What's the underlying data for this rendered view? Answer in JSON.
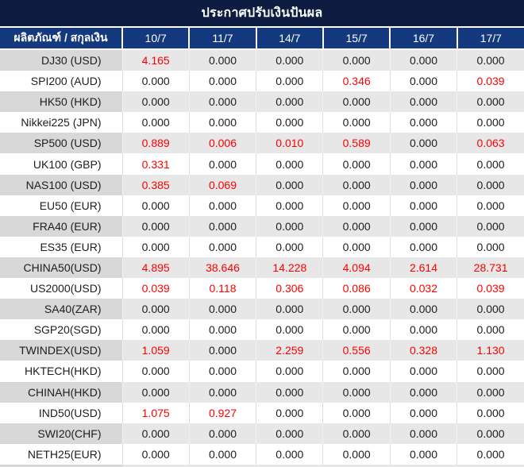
{
  "title": "ประกาศปรับเงินปันผล",
  "table": {
    "product_header": "ผลิตภัณฑ์ / สกุลเงิน",
    "date_columns": [
      "10/7",
      "11/7",
      "14/7",
      "15/7",
      "16/7",
      "17/7"
    ],
    "rows": [
      {
        "label": "DJ30 (USD)",
        "values": [
          "4.165",
          "0.000",
          "0.000",
          "0.000",
          "0.000",
          "0.000"
        ],
        "red": [
          true,
          false,
          false,
          false,
          false,
          false
        ]
      },
      {
        "label": "SPI200 (AUD)",
        "values": [
          "0.000",
          "0.000",
          "0.000",
          "0.346",
          "0.000",
          "0.039"
        ],
        "red": [
          false,
          false,
          false,
          true,
          false,
          true
        ]
      },
      {
        "label": "HK50 (HKD)",
        "values": [
          "0.000",
          "0.000",
          "0.000",
          "0.000",
          "0.000",
          "0.000"
        ],
        "red": [
          false,
          false,
          false,
          false,
          false,
          false
        ]
      },
      {
        "label": "Nikkei225 (JPN)",
        "values": [
          "0.000",
          "0.000",
          "0.000",
          "0.000",
          "0.000",
          "0.000"
        ],
        "red": [
          false,
          false,
          false,
          false,
          false,
          false
        ]
      },
      {
        "label": "SP500 (USD)",
        "values": [
          "0.889",
          "0.006",
          "0.010",
          "0.589",
          "0.000",
          "0.063"
        ],
        "red": [
          true,
          true,
          true,
          true,
          false,
          true
        ]
      },
      {
        "label": "UK100 (GBP)",
        "values": [
          "0.331",
          "0.000",
          "0.000",
          "0.000",
          "0.000",
          "0.000"
        ],
        "red": [
          true,
          false,
          false,
          false,
          false,
          false
        ]
      },
      {
        "label": "NAS100 (USD)",
        "values": [
          "0.385",
          "0.069",
          "0.000",
          "0.000",
          "0.000",
          "0.000"
        ],
        "red": [
          true,
          true,
          false,
          false,
          false,
          false
        ]
      },
      {
        "label": "EU50 (EUR)",
        "values": [
          "0.000",
          "0.000",
          "0.000",
          "0.000",
          "0.000",
          "0.000"
        ],
        "red": [
          false,
          false,
          false,
          false,
          false,
          false
        ]
      },
      {
        "label": "FRA40 (EUR)",
        "values": [
          "0.000",
          "0.000",
          "0.000",
          "0.000",
          "0.000",
          "0.000"
        ],
        "red": [
          false,
          false,
          false,
          false,
          false,
          false
        ]
      },
      {
        "label": "ES35 (EUR)",
        "values": [
          "0.000",
          "0.000",
          "0.000",
          "0.000",
          "0.000",
          "0.000"
        ],
        "red": [
          false,
          false,
          false,
          false,
          false,
          false
        ]
      },
      {
        "label": "CHINA50(USD)",
        "values": [
          "4.895",
          "38.646",
          "14.228",
          "4.094",
          "2.614",
          "28.731"
        ],
        "red": [
          true,
          true,
          true,
          true,
          true,
          true
        ]
      },
      {
        "label": "US2000(USD)",
        "values": [
          "0.039",
          "0.118",
          "0.306",
          "0.086",
          "0.032",
          "0.039"
        ],
        "red": [
          true,
          true,
          true,
          true,
          true,
          true
        ]
      },
      {
        "label": "SA40(ZAR)",
        "values": [
          "0.000",
          "0.000",
          "0.000",
          "0.000",
          "0.000",
          "0.000"
        ],
        "red": [
          false,
          false,
          false,
          false,
          false,
          false
        ]
      },
      {
        "label": "SGP20(SGD)",
        "values": [
          "0.000",
          "0.000",
          "0.000",
          "0.000",
          "0.000",
          "0.000"
        ],
        "red": [
          false,
          false,
          false,
          false,
          false,
          false
        ]
      },
      {
        "label": "TWINDEX(USD)",
        "values": [
          "1.059",
          "0.000",
          "2.259",
          "0.556",
          "0.328",
          "1.130"
        ],
        "red": [
          true,
          false,
          true,
          true,
          true,
          true
        ]
      },
      {
        "label": "HKTECH(HKD)",
        "values": [
          "0.000",
          "0.000",
          "0.000",
          "0.000",
          "0.000",
          "0.000"
        ],
        "red": [
          false,
          false,
          false,
          false,
          false,
          false
        ]
      },
      {
        "label": "CHINAH(HKD)",
        "values": [
          "0.000",
          "0.000",
          "0.000",
          "0.000",
          "0.000",
          "0.000"
        ],
        "red": [
          false,
          false,
          false,
          false,
          false,
          false
        ]
      },
      {
        "label": "IND50(USD)",
        "values": [
          "1.075",
          "0.927",
          "0.000",
          "0.000",
          "0.000",
          "0.000"
        ],
        "red": [
          true,
          true,
          false,
          false,
          false,
          false
        ]
      },
      {
        "label": "SWI20(CHF)",
        "values": [
          "0.000",
          "0.000",
          "0.000",
          "0.000",
          "0.000",
          "0.000"
        ],
        "red": [
          false,
          false,
          false,
          false,
          false,
          false
        ]
      },
      {
        "label": "NETH25(EUR)",
        "values": [
          "0.000",
          "0.000",
          "0.000",
          "0.000",
          "0.000",
          "0.000"
        ],
        "red": [
          false,
          false,
          false,
          false,
          false,
          false
        ]
      }
    ]
  },
  "colors": {
    "title_bg": "#0d1c40",
    "header_bg": "#15397e",
    "alt_label_bg": "#d8d8d8",
    "alt_value_bg": "#e7e7e7",
    "highlight": "#fe0000",
    "text": "#1d1d1d"
  }
}
